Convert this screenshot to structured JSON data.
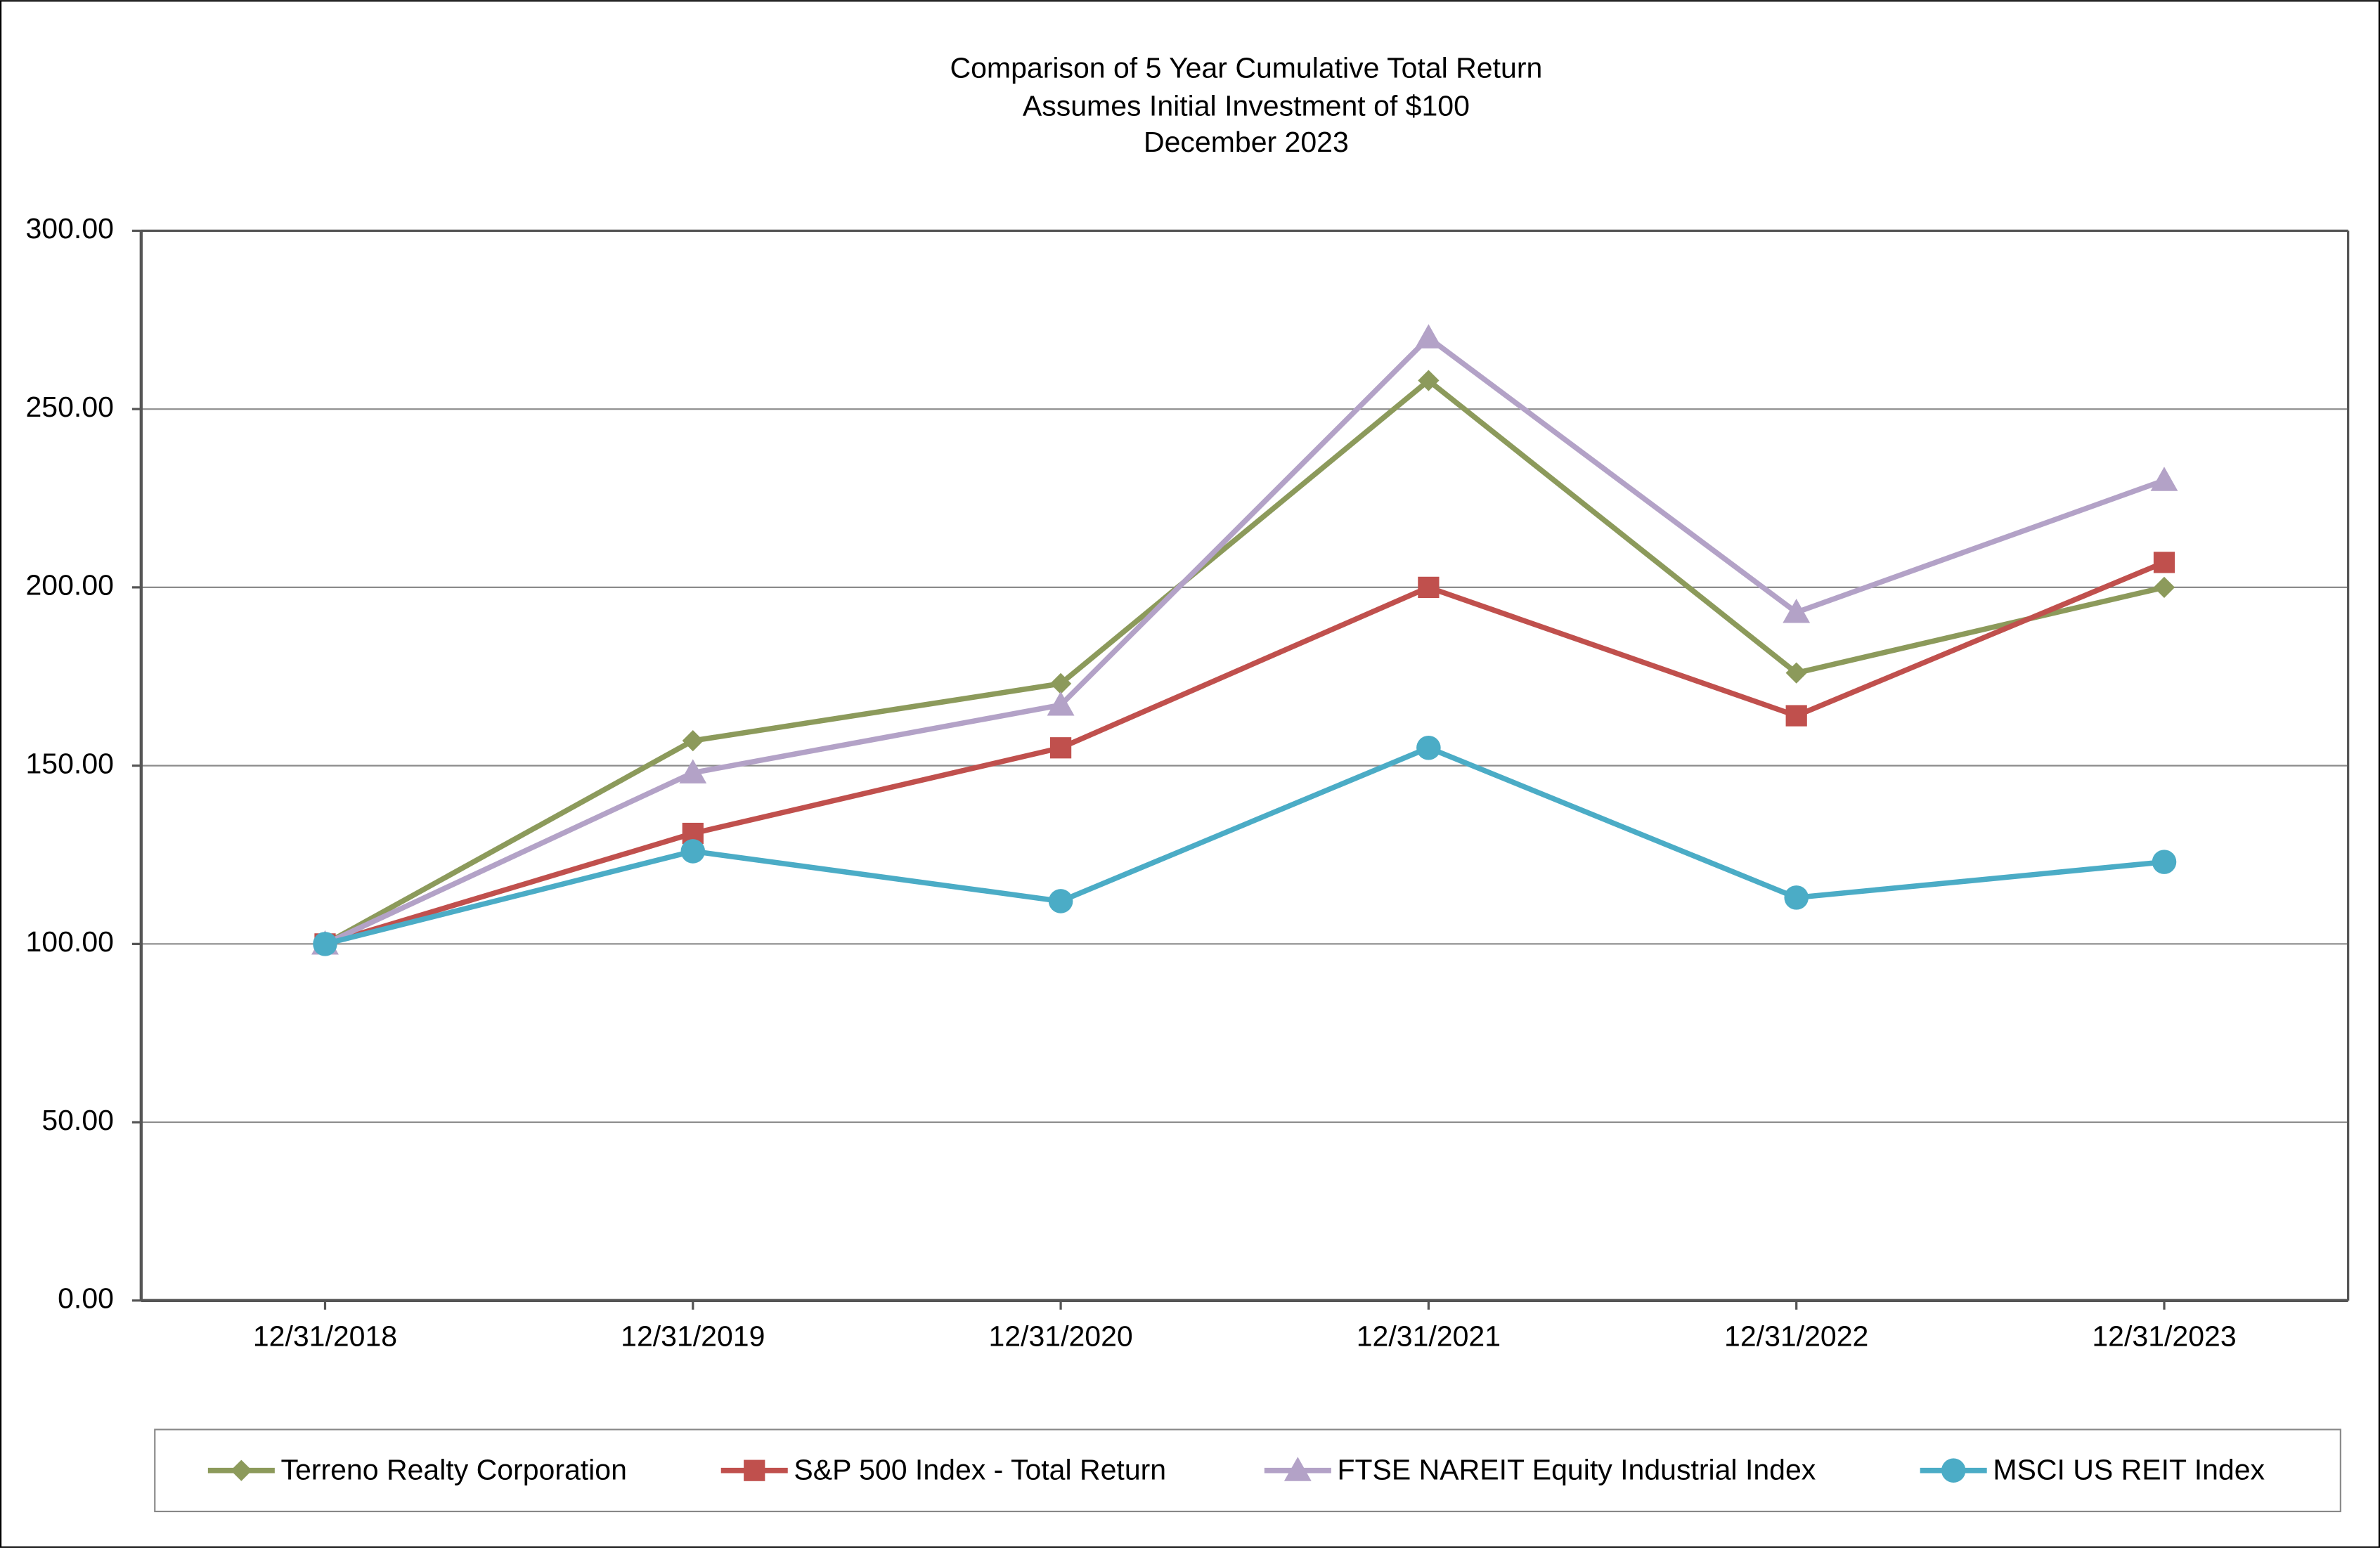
{
  "chart_data": {
    "type": "line",
    "title": "Comparison of 5 Year Cumulative Total Return",
    "subtitle": [
      "Assumes Initial Investment of $100",
      "December 2023"
    ],
    "categories": [
      "12/31/2018",
      "12/31/2019",
      "12/31/2020",
      "12/31/2021",
      "12/31/2022",
      "12/31/2023"
    ],
    "series": [
      {
        "name": "Terreno Realty Corporation",
        "color": "#8c9a5b",
        "marker": "diamond",
        "values": [
          100,
          157,
          173,
          258,
          176,
          200
        ]
      },
      {
        "name": "S&P 500 Index - Total Return",
        "color": "#c0504d",
        "marker": "square",
        "values": [
          100,
          131,
          155,
          200,
          164,
          207
        ]
      },
      {
        "name": "FTSE NAREIT Equity Industrial Index",
        "color": "#b3a2c7",
        "marker": "triangle",
        "values": [
          100,
          148,
          167,
          270,
          193,
          230
        ]
      },
      {
        "name": "MSCI US REIT Index",
        "color": "#4bacc6",
        "marker": "circle",
        "values": [
          100,
          126,
          112,
          155,
          113,
          123
        ]
      }
    ],
    "ylim": [
      0,
      300
    ],
    "yticks": [
      {
        "value": 0,
        "label": "0.00"
      },
      {
        "value": 50,
        "label": "50.00"
      },
      {
        "value": 100,
        "label": "100.00"
      },
      {
        "value": 150,
        "label": "150.00"
      },
      {
        "value": 200,
        "label": "200.00"
      },
      {
        "value": 250,
        "label": "250.00"
      },
      {
        "value": 300,
        "label": "300.00"
      }
    ],
    "grid": true,
    "legend": "bottom"
  }
}
